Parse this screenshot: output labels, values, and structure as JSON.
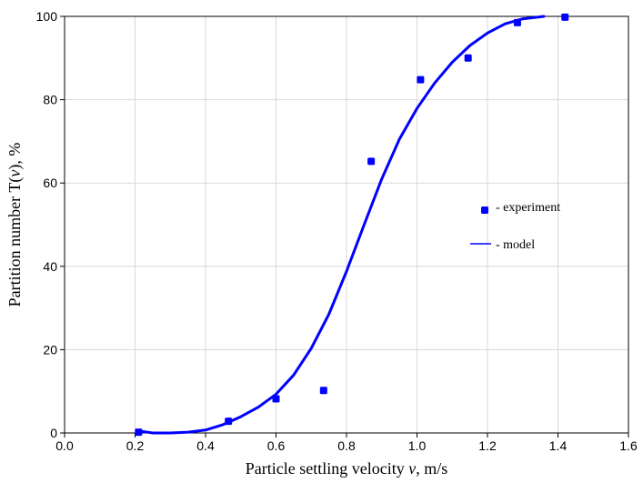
{
  "chart_data": {
    "type": "scatter",
    "xlabel": "Particle settling velocity ",
    "xlabel_var": "v",
    "xlabel_unit": ", m/s",
    "ylabel": "Partition number T(",
    "ylabel_var": "v",
    "ylabel_unit": "), %",
    "xlim": [
      0.0,
      1.6
    ],
    "ylim": [
      0,
      100
    ],
    "x_ticks": [
      0.0,
      0.2,
      0.4,
      0.6,
      0.8,
      1.0,
      1.2,
      1.4,
      1.6
    ],
    "x_tick_labels": [
      "0.0",
      "0.2",
      "0.4",
      "0.6",
      "0.8",
      "1.0",
      "1.2",
      "1.4",
      "1.6"
    ],
    "y_ticks": [
      0,
      20,
      40,
      60,
      80,
      100
    ],
    "y_tick_labels": [
      "0",
      "20",
      "40",
      "60",
      "80",
      "100"
    ],
    "grid": true,
    "legend_placement": "right-center",
    "series": [
      {
        "name": "- experiment",
        "kind": "scatter",
        "color": "#0000ff",
        "x": [
          0.21,
          0.465,
          0.6,
          0.735,
          0.87,
          1.01,
          1.145,
          1.285,
          1.42
        ],
        "y": [
          0.2,
          2.8,
          8.2,
          10.2,
          65.2,
          84.8,
          90.0,
          98.5,
          99.8
        ]
      },
      {
        "name": "- model",
        "kind": "line",
        "color": "#0000ff",
        "x": [
          0.21,
          0.25,
          0.3,
          0.35,
          0.4,
          0.45,
          0.5,
          0.55,
          0.6,
          0.65,
          0.7,
          0.75,
          0.8,
          0.85,
          0.9,
          0.95,
          1.0,
          1.05,
          1.1,
          1.15,
          1.2,
          1.25,
          1.3,
          1.35,
          1.36
        ],
        "y": [
          0.5,
          0.0,
          0.0,
          0.2,
          0.7,
          2.0,
          3.9,
          6.2,
          9.3,
          13.9,
          20.3,
          28.5,
          38.8,
          50.0,
          61.0,
          70.5,
          77.9,
          84.0,
          89.0,
          93.0,
          96.0,
          98.2,
          99.4,
          99.9,
          100.0
        ]
      }
    ]
  }
}
